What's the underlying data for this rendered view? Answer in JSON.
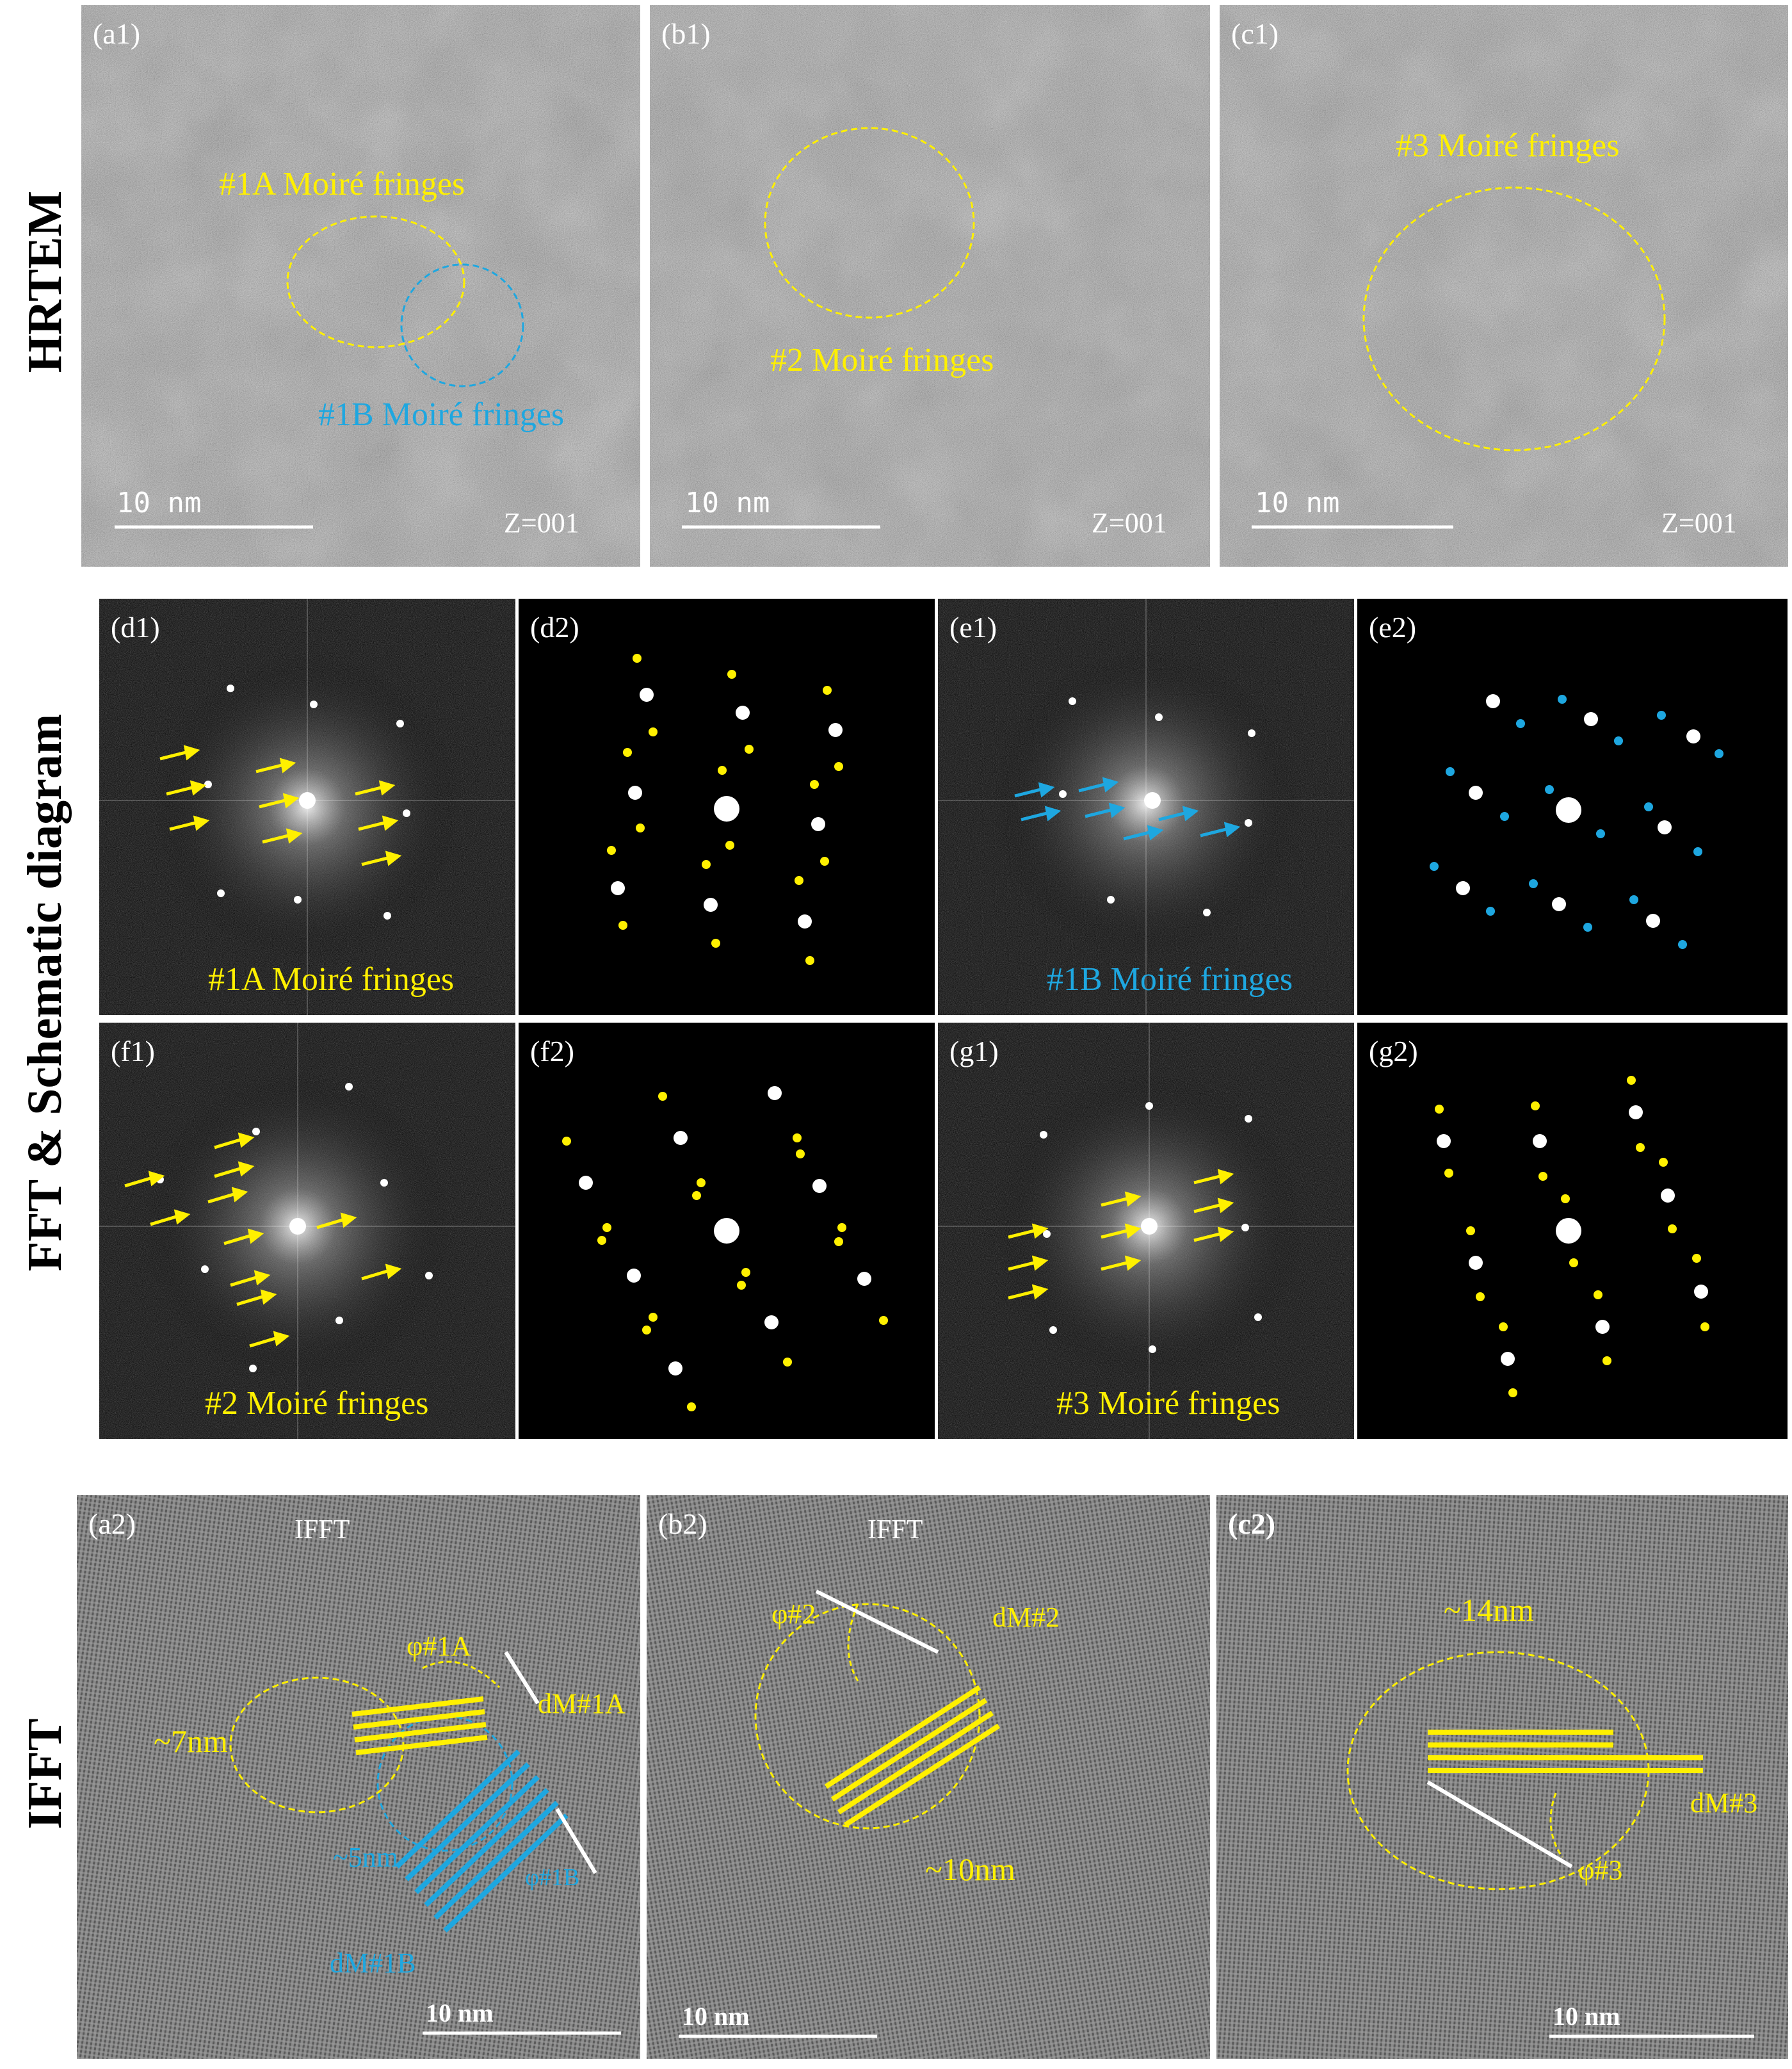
{
  "rows": {
    "hrtem": "HRTEM",
    "fft": "FFT & Schematic diagram",
    "ifft": "IFFT"
  },
  "panels": {
    "a1": {
      "label": "(a1)",
      "moire_a": "#1A Moiré fringes",
      "moire_b": "#1B Moiré fringes",
      "scale": "10 nm",
      "zone": "Z=001"
    },
    "b1": {
      "label": "(b1)",
      "moire": "#2 Moiré fringes",
      "scale": "10 nm",
      "zone": "Z=001"
    },
    "c1": {
      "label": "(c1)",
      "moire": "#3 Moiré fringes",
      "scale": "10 nm",
      "zone": "Z=001"
    },
    "d1": {
      "label": "(d1)",
      "caption": "#1A Moiré fringes"
    },
    "d2": {
      "label": "(d2)"
    },
    "e1": {
      "label": "(e1)",
      "caption": "#1B Moiré fringes"
    },
    "e2": {
      "label": "(e2)"
    },
    "f1": {
      "label": "(f1)",
      "caption": "#2 Moiré fringes"
    },
    "f2": {
      "label": "(f2)"
    },
    "g1": {
      "label": "(g1)",
      "caption": "#3 Moiré fringes"
    },
    "g2": {
      "label": "(g2)"
    },
    "a2": {
      "label": "(a2)",
      "title": "IFFT",
      "size_a": "~7nm",
      "size_b": "~5nm",
      "phi_a": "φ#1A",
      "phi_b": "φ#1B",
      "d_a": "dM#1A",
      "d_b": "dM#1B",
      "scale": "10 nm"
    },
    "b2": {
      "label": "(b2)",
      "title": "IFFT",
      "size": "~10nm",
      "phi": "φ#2",
      "d": "dM#2",
      "scale": "10 nm"
    },
    "c2": {
      "label": "(c2)",
      "size": "~14nm",
      "phi": "φ#3",
      "d": "dM#3",
      "scale": "10 nm"
    }
  },
  "colors": {
    "yellow": "#fff000",
    "blue": "#1ea7e0",
    "white": "#ffffff"
  }
}
